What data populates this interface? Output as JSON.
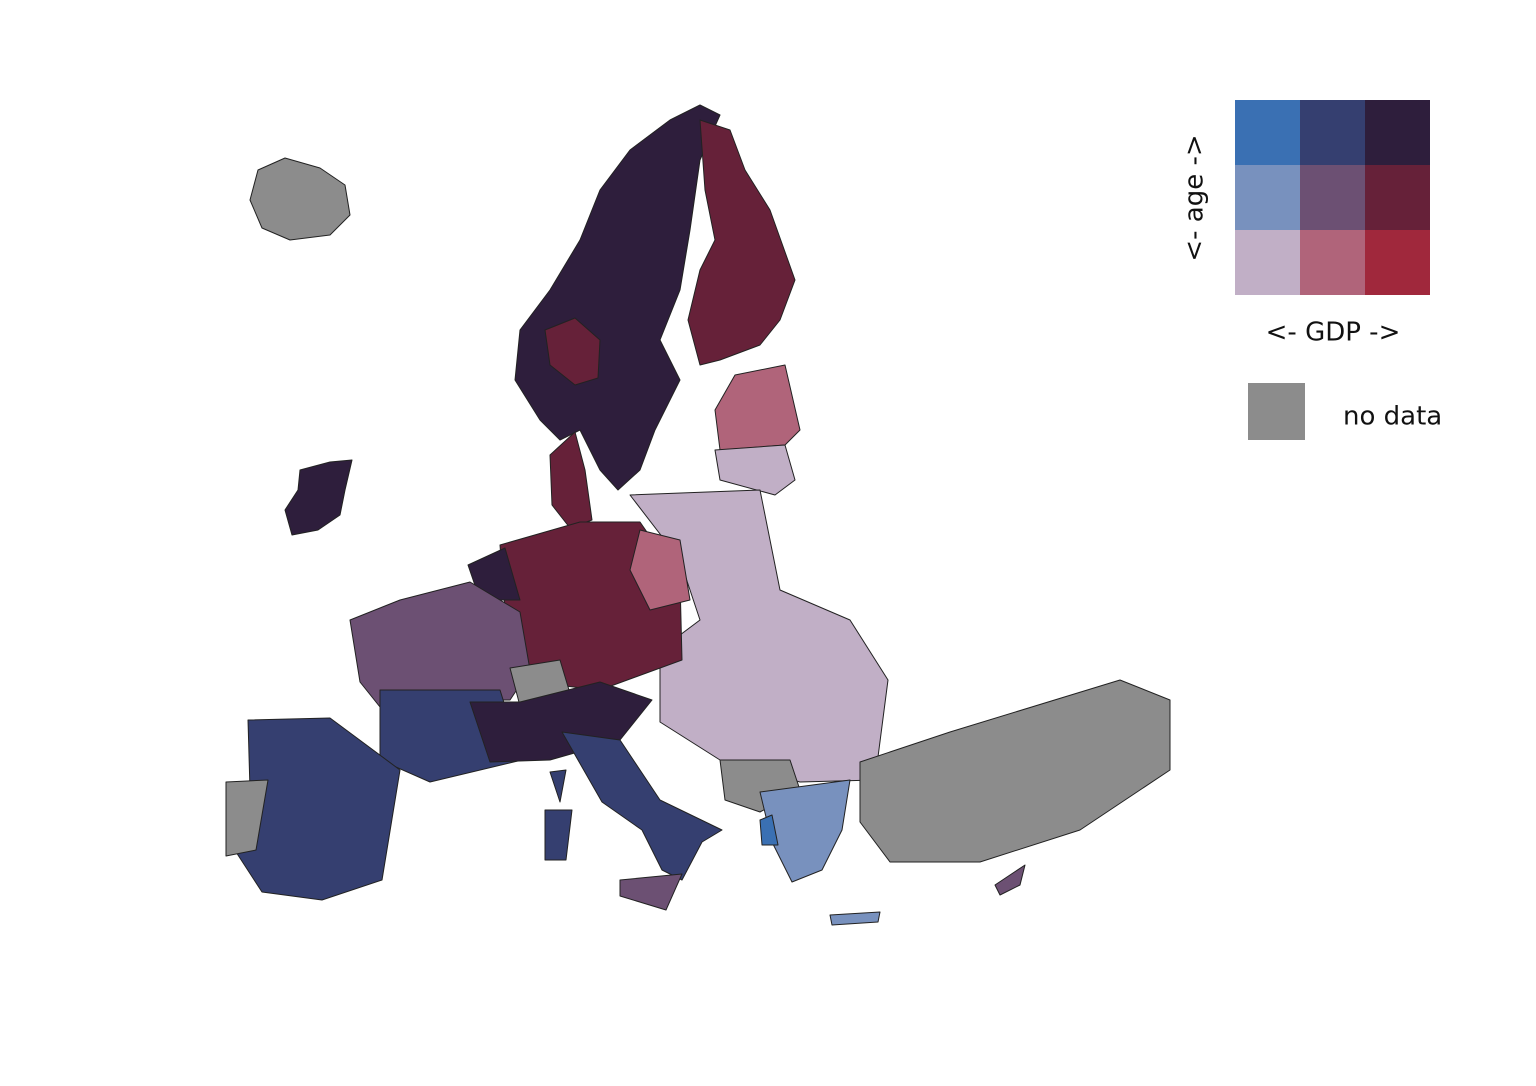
{
  "legend": {
    "y_label": "<- age ->",
    "x_label": "<- GDP ->",
    "colors": [
      [
        "#3a70b3",
        "#353f70",
        "#2e1e3c"
      ],
      [
        "#7891be",
        "#6c5073",
        "#662139"
      ],
      [
        "#c1afc6",
        "#b0647a",
        "#a0283c"
      ]
    ],
    "no_data_label": "no data",
    "no_data_color": "#8c8c8c"
  }
}
